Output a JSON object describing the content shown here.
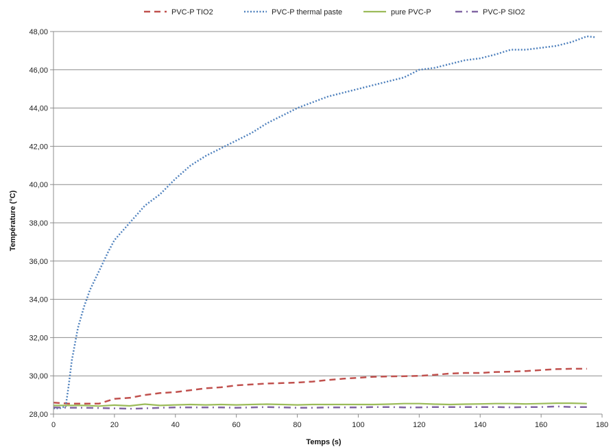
{
  "chart_data": {
    "type": "line",
    "xlabel": "Temps (s)",
    "ylabel": "Température (°C)",
    "xlim": [
      0,
      180
    ],
    "ylim": [
      28,
      48
    ],
    "x_ticks": [
      "0",
      "20",
      "40",
      "60",
      "80",
      "100",
      "120",
      "140",
      "160",
      "180"
    ],
    "y_ticks": [
      "28,00",
      "30,00",
      "32,00",
      "34,00",
      "36,00",
      "38,00",
      "40,00",
      "42,00",
      "44,00",
      "46,00",
      "48,00"
    ],
    "grid": "horizontal",
    "legend_position": "top",
    "series": [
      {
        "name": "PVC-P TIO2",
        "color": "#c0504d",
        "dash": "dashed",
        "x": [
          0,
          5,
          10,
          15,
          20,
          25,
          30,
          35,
          40,
          45,
          50,
          55,
          60,
          65,
          70,
          75,
          80,
          85,
          90,
          95,
          100,
          105,
          110,
          115,
          120,
          125,
          130,
          135,
          140,
          145,
          150,
          155,
          160,
          165,
          170,
          175
        ],
        "y": [
          28.6,
          28.55,
          28.55,
          28.55,
          28.8,
          28.85,
          29.0,
          29.1,
          29.15,
          29.25,
          29.35,
          29.4,
          29.5,
          29.55,
          29.6,
          29.62,
          29.65,
          29.7,
          29.78,
          29.85,
          29.9,
          29.95,
          29.97,
          29.98,
          30.0,
          30.05,
          30.12,
          30.15,
          30.15,
          30.2,
          30.22,
          30.25,
          30.3,
          30.35,
          30.37,
          30.37
        ]
      },
      {
        "name": "PVC-P thermal paste",
        "color": "#4f81bd",
        "dash": "dotted",
        "x": [
          0,
          2,
          4,
          5,
          6,
          8,
          10,
          12,
          15,
          18,
          20,
          25,
          30,
          35,
          40,
          45,
          50,
          55,
          60,
          65,
          70,
          75,
          80,
          85,
          90,
          95,
          100,
          105,
          110,
          115,
          120,
          125,
          130,
          135,
          140,
          145,
          150,
          155,
          160,
          165,
          170,
          175,
          178
        ],
        "y": [
          28.3,
          28.3,
          28.4,
          29.5,
          30.8,
          32.5,
          33.6,
          34.5,
          35.5,
          36.5,
          37.1,
          38.0,
          38.9,
          39.5,
          40.3,
          41.0,
          41.5,
          41.9,
          42.3,
          42.7,
          43.2,
          43.6,
          44.0,
          44.3,
          44.6,
          44.8,
          45.0,
          45.2,
          45.4,
          45.6,
          46.0,
          46.1,
          46.3,
          46.5,
          46.6,
          46.8,
          47.05,
          47.05,
          47.15,
          47.25,
          47.45,
          47.75,
          47.7
        ]
      },
      {
        "name": "pure PVC-P",
        "color": "#9bbb59",
        "dash": "solid",
        "x": [
          0,
          5,
          10,
          15,
          20,
          25,
          30,
          35,
          40,
          45,
          50,
          55,
          60,
          65,
          70,
          75,
          80,
          85,
          90,
          95,
          100,
          105,
          110,
          115,
          120,
          125,
          130,
          135,
          140,
          145,
          150,
          155,
          160,
          165,
          170,
          175
        ],
        "y": [
          28.45,
          28.45,
          28.45,
          28.42,
          28.47,
          28.43,
          28.52,
          28.45,
          28.48,
          28.5,
          28.48,
          28.5,
          28.48,
          28.5,
          28.52,
          28.5,
          28.48,
          28.5,
          28.5,
          28.5,
          28.5,
          28.5,
          28.52,
          28.55,
          28.55,
          28.52,
          28.5,
          28.52,
          28.53,
          28.55,
          28.55,
          28.53,
          28.55,
          28.57,
          28.57,
          28.55
        ]
      },
      {
        "name": "PVC-P SIO2",
        "color": "#8064a2",
        "dash": "dashdot",
        "x": [
          0,
          5,
          10,
          15,
          20,
          25,
          30,
          35,
          40,
          45,
          50,
          55,
          60,
          65,
          70,
          75,
          80,
          85,
          90,
          95,
          100,
          105,
          110,
          115,
          120,
          125,
          130,
          135,
          140,
          145,
          150,
          155,
          160,
          165,
          170,
          175
        ],
        "y": [
          28.35,
          28.33,
          28.33,
          28.32,
          28.3,
          28.28,
          28.3,
          28.33,
          28.35,
          28.35,
          28.35,
          28.35,
          28.33,
          28.35,
          28.37,
          28.35,
          28.33,
          28.33,
          28.35,
          28.35,
          28.35,
          28.37,
          28.37,
          28.35,
          28.35,
          28.37,
          28.37,
          28.37,
          28.37,
          28.37,
          28.35,
          28.37,
          28.37,
          28.4,
          28.37,
          28.37
        ]
      }
    ]
  }
}
